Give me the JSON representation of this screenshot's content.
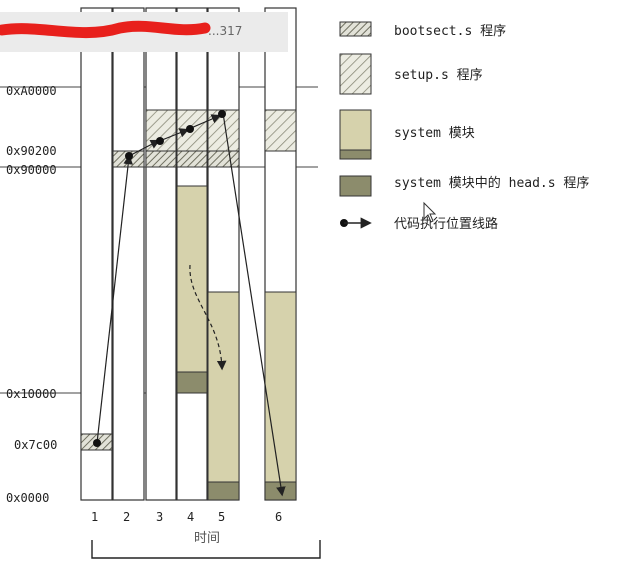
{
  "diagram": {
    "addresses": {
      "a0000": "0xA0000",
      "a90200": "0x90200",
      "a90000": "0x90000",
      "a10000": "0x10000",
      "a7c00": "0x7c00",
      "a0": "0x0000"
    },
    "columns": [
      "1",
      "2",
      "3",
      "4",
      "5",
      "6"
    ],
    "bottom_label": "时间",
    "redacted_text": "...317",
    "legend": {
      "bootsect": "bootsect.s 程序",
      "setup": "setup.s 程序",
      "system": "system 模块",
      "head": "system 模块中的 head.s 程序",
      "path": "代码执行位置线路"
    },
    "colors": {
      "system": "#d6d2ac",
      "head": "#8c8c6c",
      "hatch": "#8a8a7a",
      "redact": "#e8201c"
    }
  }
}
